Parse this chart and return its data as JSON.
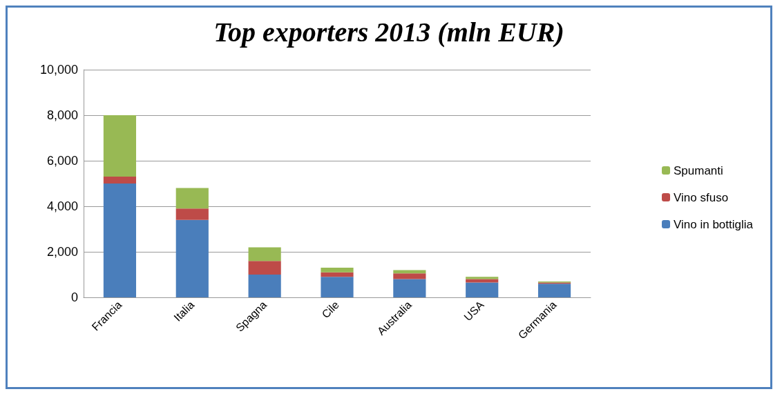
{
  "chart_data": {
    "type": "bar",
    "title": "Top exporters 2013 (mln EUR)",
    "categories": [
      "Francia",
      "Italia",
      "Spagna",
      "Cile",
      "Australia",
      "USA",
      "Germania"
    ],
    "stacked": true,
    "series": [
      {
        "name": "Vino in bottiglia",
        "color": "#4a7ebb",
        "values": [
          5000,
          3400,
          1000,
          900,
          800,
          650,
          600
        ]
      },
      {
        "name": "Vino sfuso",
        "color": "#be4b48",
        "values": [
          300,
          500,
          600,
          200,
          250,
          150,
          50
        ]
      },
      {
        "name": "Spumanti",
        "color": "#98b954",
        "values": [
          2700,
          900,
          600,
          200,
          150,
          100,
          50
        ]
      }
    ],
    "ylim": [
      0,
      10000
    ],
    "yticks": [
      0,
      {
        "value": 2000,
        "label": "2,000"
      },
      {
        "value": 4000,
        "label": "4,000"
      },
      {
        "value": 6000,
        "label": "6,000"
      },
      {
        "value": 8000,
        "label": "8,000"
      },
      {
        "value": 10000,
        "label": "10,000"
      }
    ],
    "grid": "y",
    "legend": "right"
  }
}
